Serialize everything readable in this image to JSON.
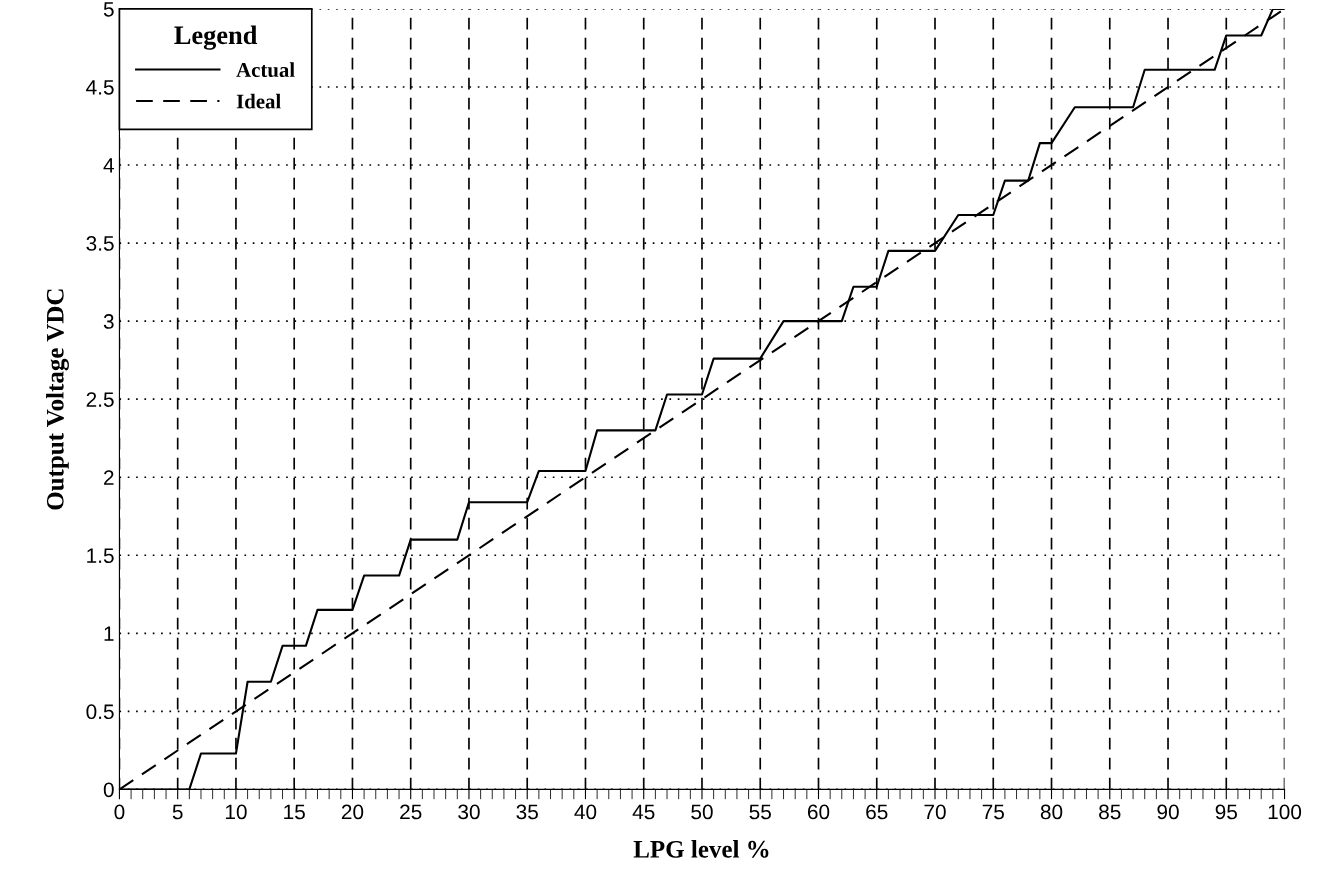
{
  "chart_data": {
    "type": "line",
    "xlabel": "LPG level %",
    "ylabel": "Output Voltage VDC",
    "legend_title": "Legend",
    "legend": "top left",
    "grid": true,
    "xlim": [
      0,
      100
    ],
    "xticks": [
      0,
      5,
      10,
      15,
      20,
      25,
      30,
      35,
      40,
      45,
      50,
      55,
      60,
      65,
      70,
      75,
      80,
      85,
      90,
      95,
      100
    ],
    "ylim": [
      0,
      5
    ],
    "yticks": [
      0,
      0.5,
      1,
      1.5,
      2,
      2.5,
      3,
      3.5,
      4,
      4.5,
      5
    ],
    "series": [
      {
        "name": "Actual",
        "color": "#000000",
        "line_style": "solid",
        "x": [
          0,
          6,
          7,
          10,
          11,
          13,
          14,
          16,
          17,
          20,
          21,
          24,
          25,
          29,
          30,
          35,
          36,
          40,
          41,
          46,
          47,
          50,
          51,
          55,
          57,
          62,
          63,
          65,
          66,
          70,
          72,
          75,
          76,
          78,
          79,
          80,
          82,
          87,
          88,
          94,
          95,
          98,
          99,
          100
        ],
        "values": [
          0,
          0,
          0.23,
          0.23,
          0.69,
          0.69,
          0.92,
          0.92,
          1.15,
          1.15,
          1.37,
          1.37,
          1.6,
          1.6,
          1.84,
          1.84,
          2.04,
          2.04,
          2.3,
          2.3,
          2.53,
          2.53,
          2.76,
          2.76,
          3.0,
          3.0,
          3.22,
          3.22,
          3.45,
          3.45,
          3.68,
          3.68,
          3.9,
          3.9,
          4.14,
          4.14,
          4.37,
          4.37,
          4.61,
          4.61,
          4.83,
          4.83,
          5.0,
          5.0
        ]
      },
      {
        "name": "Ideal",
        "color": "#000000",
        "line_style": "dashed",
        "x": [
          0,
          100
        ],
        "values": [
          0,
          5
        ]
      }
    ]
  }
}
